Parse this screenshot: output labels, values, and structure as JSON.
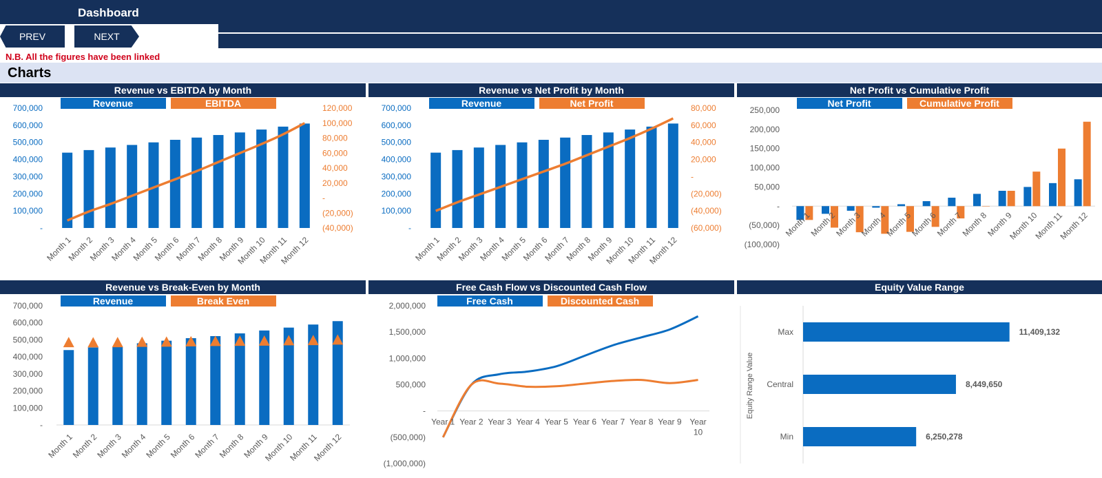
{
  "header": {
    "title": "Dashboard",
    "prev_label": "PREV",
    "next_label": "NEXT"
  },
  "note": "N.B. All the figures have been linked",
  "section_title": "Charts",
  "colors": {
    "navy": "#15305a",
    "blue": "#0a6cc1",
    "orange": "#ed7d31",
    "section": "#dce3f3",
    "note": "#d0021b"
  },
  "chart_data": [
    {
      "id": "rev-ebitda",
      "type": "bar",
      "title": "Revenue vs EBITDA by Month",
      "categories": [
        "Month 1",
        "Month 2",
        "Month 3",
        "Month 4",
        "Month 5",
        "Month 6",
        "Month 7",
        "Month 8",
        "Month 9",
        "Month 10",
        "Month 11",
        "Month 12"
      ],
      "series": [
        {
          "name": "Revenue",
          "type": "bar",
          "axis": "left",
          "values": [
            440000,
            455000,
            470000,
            485000,
            500000,
            515000,
            528000,
            543000,
            558000,
            575000,
            592000,
            610000
          ]
        },
        {
          "name": "EBITDA",
          "type": "line",
          "axis": "right",
          "values": [
            -30000,
            -18000,
            -8000,
            3000,
            14000,
            25000,
            36000,
            48000,
            60000,
            72000,
            85000,
            100000
          ]
        }
      ],
      "y_left": {
        "min": 0,
        "max": 700000,
        "ticks": [
          0,
          100000,
          200000,
          300000,
          400000,
          500000,
          600000,
          700000
        ],
        "labels": [
          "-",
          "100,000",
          "200,000",
          "300,000",
          "400,000",
          "500,000",
          "600,000",
          "700,000"
        ]
      },
      "y_right": {
        "min": -40000,
        "max": 120000,
        "ticks": [
          -40000,
          -20000,
          0,
          20000,
          40000,
          60000,
          80000,
          100000,
          120000
        ],
        "labels": [
          "(40,000)",
          "(20,000)",
          "-",
          "20,000",
          "40,000",
          "60,000",
          "80,000",
          "100,000",
          "120,000"
        ]
      },
      "legend_position": "top"
    },
    {
      "id": "rev-np",
      "type": "bar",
      "title": "Revenue vs Net Profit by Month",
      "categories": [
        "Month 1",
        "Month 2",
        "Month 3",
        "Month 4",
        "Month 5",
        "Month 6",
        "Month 7",
        "Month 8",
        "Month 9",
        "Month 10",
        "Month 11",
        "Month 12"
      ],
      "series": [
        {
          "name": "Revenue",
          "type": "bar",
          "axis": "left",
          "values": [
            440000,
            455000,
            470000,
            485000,
            500000,
            515000,
            528000,
            543000,
            558000,
            575000,
            592000,
            610000
          ]
        },
        {
          "name": "Net Profit",
          "type": "line",
          "axis": "right",
          "values": [
            -40000,
            -30000,
            -21000,
            -12000,
            -3000,
            6000,
            15000,
            25000,
            35000,
            45000,
            56000,
            68000
          ]
        }
      ],
      "y_left": {
        "min": 0,
        "max": 700000,
        "ticks": [
          0,
          100000,
          200000,
          300000,
          400000,
          500000,
          600000,
          700000
        ],
        "labels": [
          "-",
          "100,000",
          "200,000",
          "300,000",
          "400,000",
          "500,000",
          "600,000",
          "700,000"
        ]
      },
      "y_right": {
        "min": -60000,
        "max": 80000,
        "ticks": [
          -60000,
          -40000,
          -20000,
          0,
          20000,
          40000,
          60000,
          80000
        ],
        "labels": [
          "(60,000)",
          "(40,000)",
          "(20,000)",
          "-",
          "20,000",
          "40,000",
          "60,000",
          "80,000"
        ]
      },
      "legend_position": "top"
    },
    {
      "id": "np-cum",
      "type": "bar",
      "title": "Net Profit vs Cumulative Profit",
      "categories": [
        "Month 1",
        "Month 2",
        "Month 3",
        "Month 4",
        "Month 5",
        "Month 6",
        "Month 7",
        "Month 8",
        "Month 9",
        "Month 10",
        "Month 11",
        "Month 12"
      ],
      "series": [
        {
          "name": "Net Profit",
          "values": [
            -36000,
            -20000,
            -12000,
            -4000,
            5000,
            13000,
            22000,
            32000,
            40000,
            50000,
            60000,
            70000
          ]
        },
        {
          "name": "Cumulative Profit",
          "values": [
            -36000,
            -56000,
            -68000,
            -72000,
            -67000,
            -54000,
            -32000,
            0,
            40000,
            90000,
            150000,
            220000
          ]
        }
      ],
      "y_left": {
        "min": -100000,
        "max": 250000,
        "ticks": [
          -100000,
          -50000,
          0,
          50000,
          100000,
          150000,
          200000,
          250000
        ],
        "labels": [
          "(100,000)",
          "(50,000)",
          "-",
          "50,000",
          "100,000",
          "150,000",
          "200,000",
          "250,000"
        ]
      },
      "legend_position": "top"
    },
    {
      "id": "rev-be",
      "type": "bar",
      "title": "Revenue vs Break-Even by Month",
      "categories": [
        "Month 1",
        "Month 2",
        "Month 3",
        "Month 4",
        "Month 5",
        "Month 6",
        "Month 7",
        "Month 8",
        "Month 9",
        "Month 10",
        "Month 11",
        "Month 12"
      ],
      "series": [
        {
          "name": "Revenue",
          "type": "bar",
          "values": [
            440000,
            455000,
            458000,
            480000,
            495000,
            510000,
            522000,
            538000,
            555000,
            572000,
            590000,
            610000
          ]
        },
        {
          "name": "Break Even",
          "type": "marker",
          "values": [
            485000,
            484000,
            485000,
            487000,
            488000,
            490000,
            492000,
            493000,
            494000,
            496000,
            497000,
            500000
          ]
        }
      ],
      "y_left": {
        "min": 0,
        "max": 700000,
        "ticks": [
          0,
          100000,
          200000,
          300000,
          400000,
          500000,
          600000,
          700000
        ],
        "labels": [
          "-",
          "100,000",
          "200,000",
          "300,000",
          "400,000",
          "500,000",
          "600,000",
          "700,000"
        ]
      },
      "legend_position": "top"
    },
    {
      "id": "fcf-dcf",
      "type": "line",
      "title": "Free Cash Flow vs Discounted Cash Flow",
      "categories": [
        "Year 1",
        "Year 2",
        "Year 3",
        "Year 4",
        "Year 5",
        "Year 6",
        "Year 7",
        "Year 8",
        "Year 9",
        "Year 10"
      ],
      "series": [
        {
          "name": "Free Cash",
          "values": [
            -500000,
            500000,
            700000,
            750000,
            850000,
            1050000,
            1250000,
            1400000,
            1550000,
            1800000
          ]
        },
        {
          "name": "Discounted Cash",
          "values": [
            -500000,
            500000,
            520000,
            460000,
            470000,
            520000,
            570000,
            590000,
            530000,
            590000
          ]
        }
      ],
      "y_left": {
        "min": -1000000,
        "max": 2000000,
        "ticks": [
          -1000000,
          -500000,
          0,
          500000,
          1000000,
          1500000,
          2000000
        ],
        "labels": [
          "(1,000,000)",
          "(500,000)",
          "-",
          "500,000",
          "1,000,000",
          "1,500,000",
          "2,000,000"
        ]
      },
      "legend_position": "top"
    },
    {
      "id": "equity",
      "type": "bar",
      "orientation": "horizontal",
      "title": "Equity Value Range",
      "ylabel": "Equity Range Value",
      "categories": [
        "Max",
        "Central",
        "Min"
      ],
      "values": [
        11409132,
        8449650,
        6250278
      ],
      "value_labels": [
        "11,409,132",
        "8,449,650",
        "6,250,278"
      ],
      "xlim": [
        0,
        15000000
      ]
    }
  ]
}
